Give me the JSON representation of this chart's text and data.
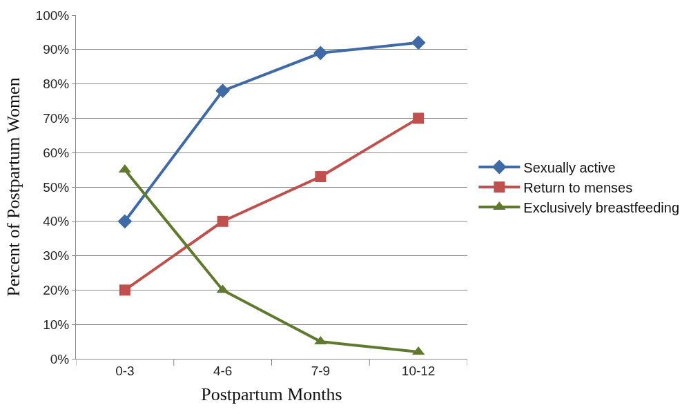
{
  "chart_data": {
    "type": "line",
    "xlabel": "Postpartum Months",
    "ylabel": "Percent of Postpartum Women",
    "categories": [
      "0-3",
      "4-6",
      "7-9",
      "10-12"
    ],
    "series": [
      {
        "name": "Sexually active",
        "color": "#3f6aa5",
        "marker": "diamond",
        "values": [
          40,
          78,
          89,
          92
        ]
      },
      {
        "name": "Return to menses",
        "color": "#c0504d",
        "marker": "square",
        "values": [
          20,
          40,
          53,
          70
        ]
      },
      {
        "name": "Exclusively breastfeeding",
        "color": "#5f7a2e",
        "marker": "triangle",
        "values": [
          55,
          20,
          5,
          2
        ]
      }
    ],
    "ylim": [
      0,
      100
    ],
    "yticks": [
      {
        "value": 0,
        "label": "0%"
      },
      {
        "value": 10,
        "label": "10%"
      },
      {
        "value": 20,
        "label": "20%"
      },
      {
        "value": 30,
        "label": "30%"
      },
      {
        "value": 40,
        "label": "40%"
      },
      {
        "value": 50,
        "label": "50%"
      },
      {
        "value": 60,
        "label": "60%"
      },
      {
        "value": 70,
        "label": "70%"
      },
      {
        "value": 80,
        "label": "80%"
      },
      {
        "value": 90,
        "label": "90%"
      },
      {
        "value": 100,
        "label": "100%"
      }
    ],
    "grid": "y",
    "legend": "right",
    "line_style": "solid"
  }
}
